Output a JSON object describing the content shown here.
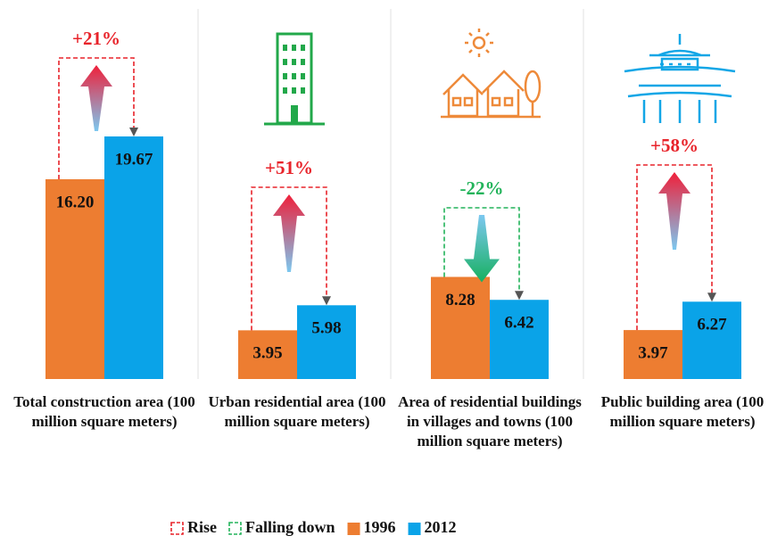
{
  "chart_data": {
    "type": "bar",
    "categories": [
      "Total construction area (100 million square meters)",
      "Urban residential area (100 million square meters)",
      "Area of residential buildings in villages and towns (100 million square meters)",
      "Public building area (100 million square meters)"
    ],
    "series": [
      {
        "name": "1996",
        "color": "#ed7d31",
        "values": [
          16.2,
          3.95,
          8.28,
          3.97
        ],
        "value_labels": [
          "16.20",
          "3.95",
          "8.28",
          "3.97"
        ]
      },
      {
        "name": "2012",
        "color": "#0aa3e8",
        "values": [
          19.67,
          5.98,
          6.42,
          6.27
        ],
        "value_labels": [
          "19.67",
          "5.98",
          "6.42",
          "6.27"
        ]
      }
    ],
    "annotations": [
      "+21%",
      "+51%",
      "-22%",
      "+58%"
    ],
    "change_legend": [
      {
        "name": "Rise",
        "color": "#e8232a"
      },
      {
        "name": "Falling down",
        "color": "#22b35a"
      }
    ]
  }
}
